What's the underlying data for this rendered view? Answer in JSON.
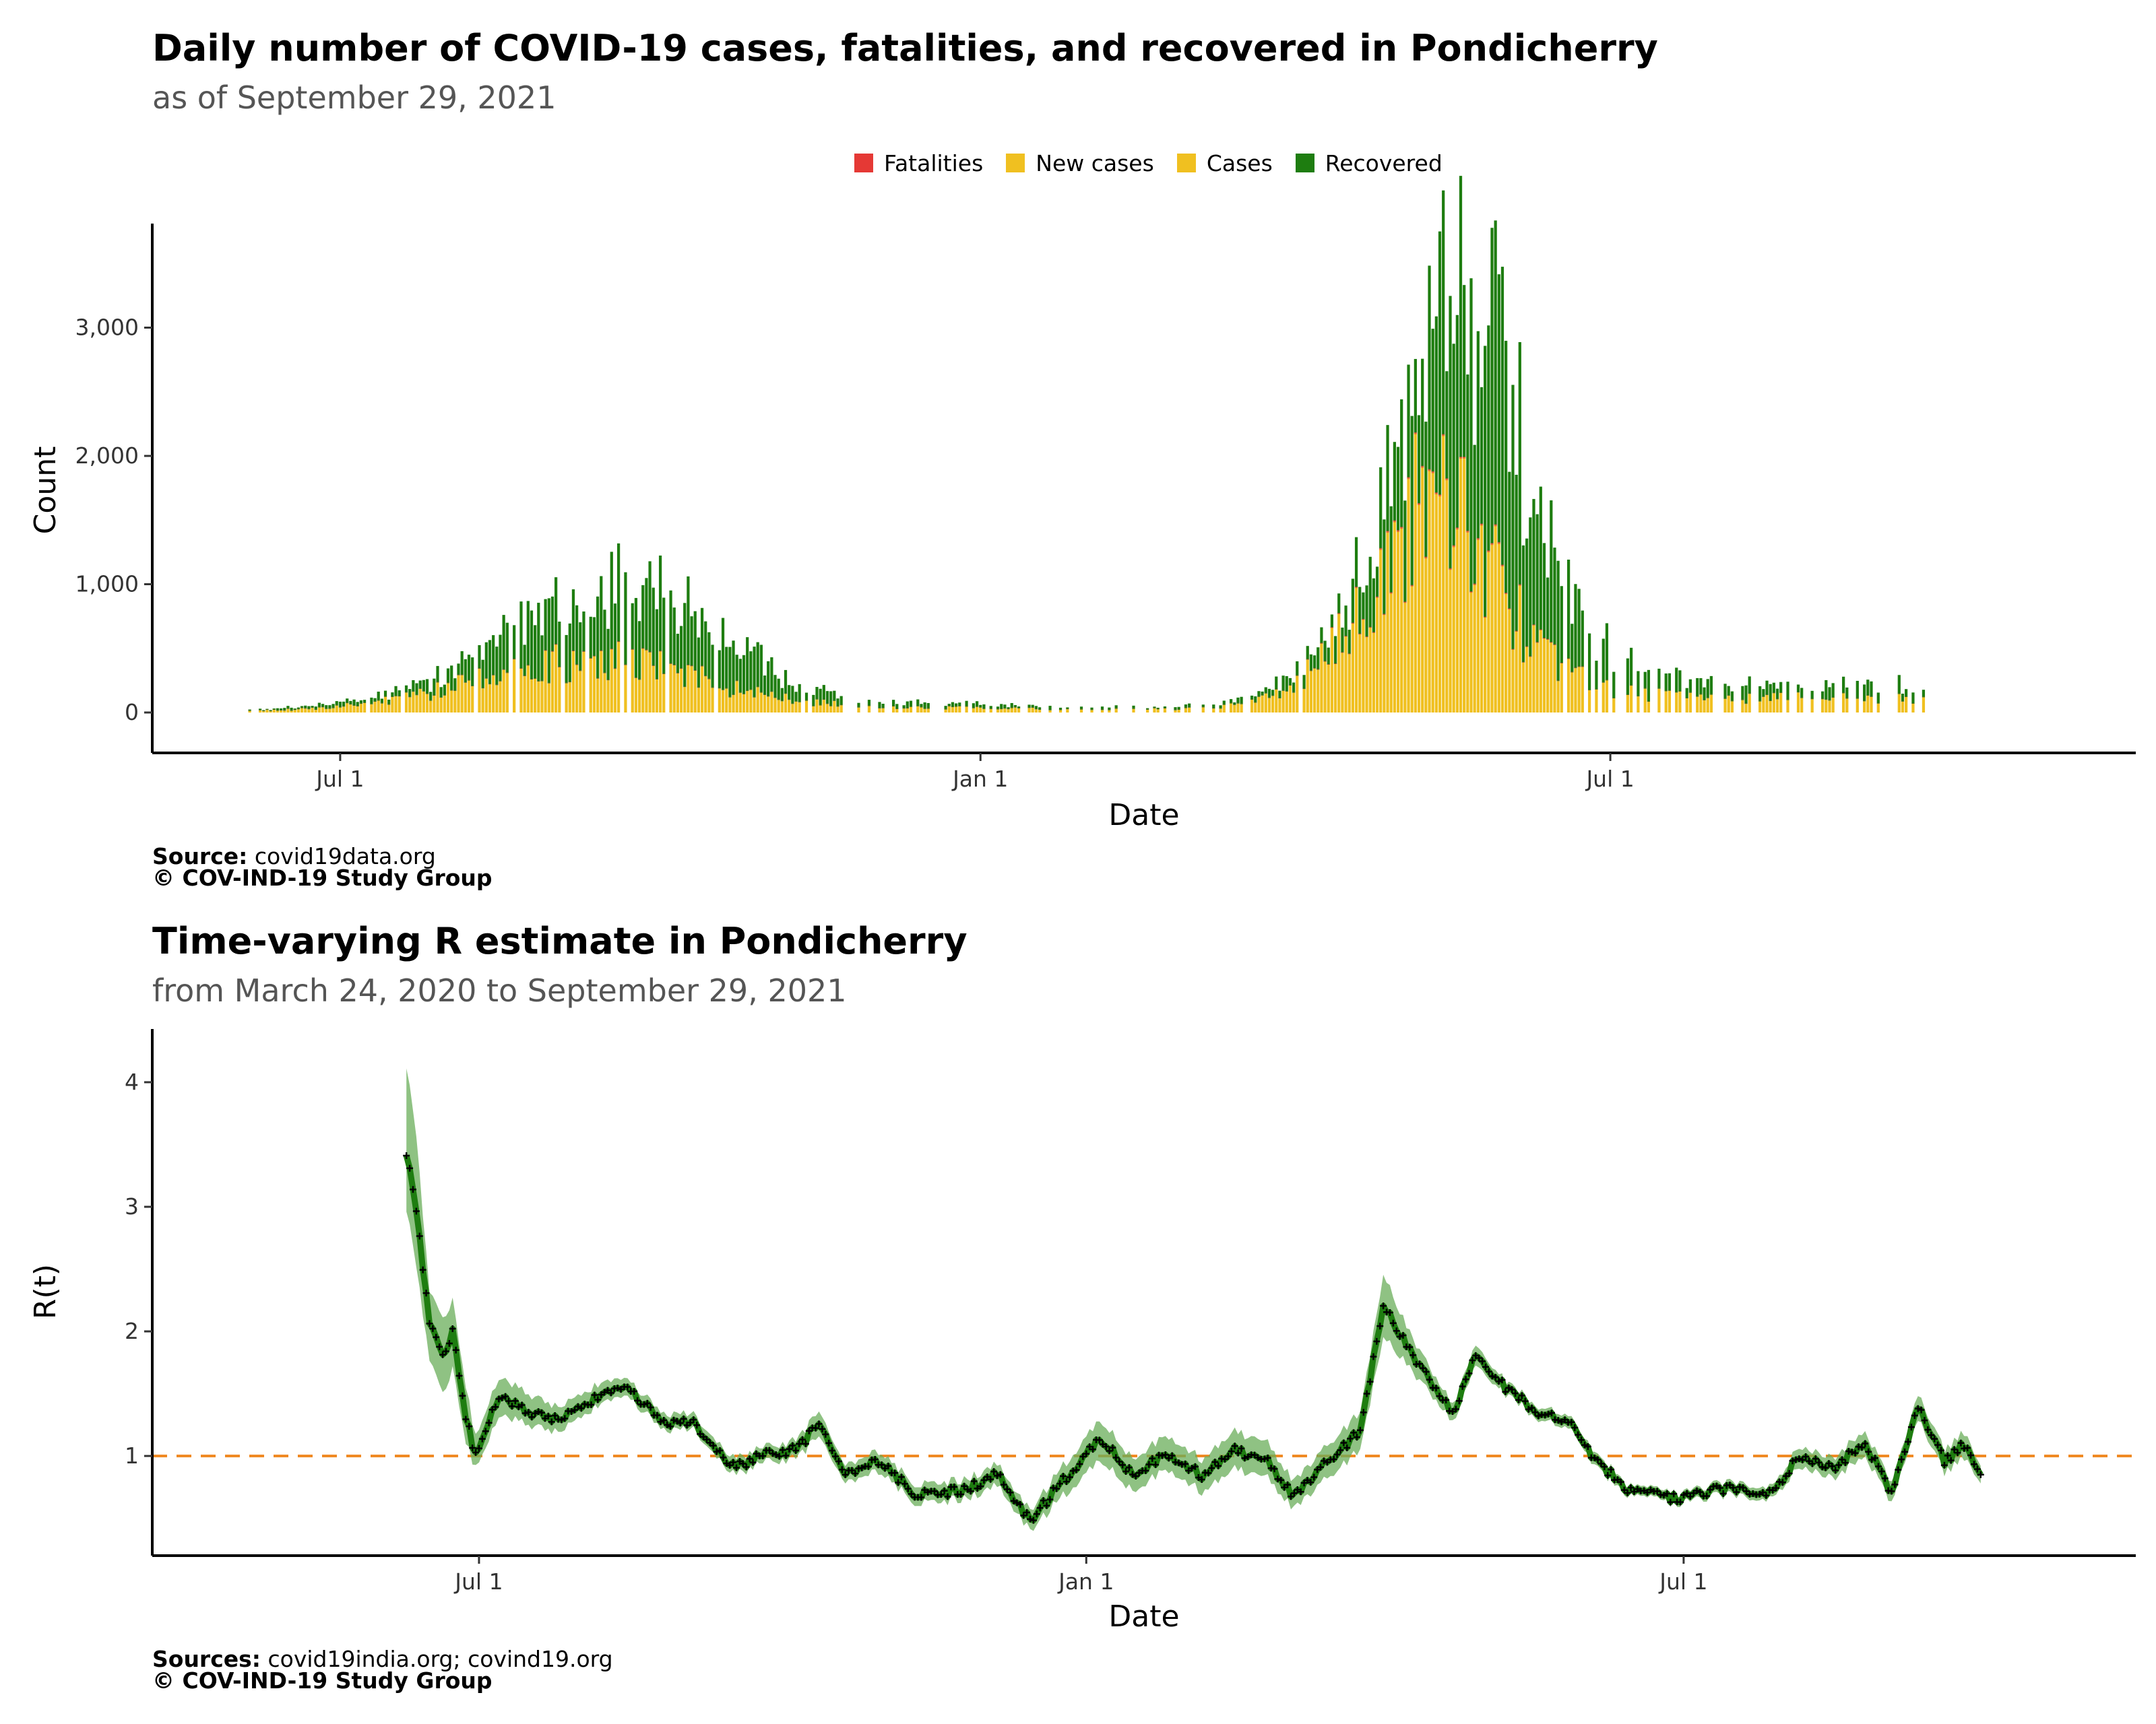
{
  "colors": {
    "fatalities": "#E53935",
    "new_cases": "#F0C020",
    "cases": "#F0C020",
    "recovered": "#1E7D10",
    "r_line": "#1E7D10",
    "r_band": "#6AAE5A",
    "ref_line": "#F08A24",
    "axis": "#000000"
  },
  "top_chart": {
    "title": "Daily number of COVID-19 cases, fatalities, and recovered in Pondicherry",
    "subtitle": "as of September 29, 2021",
    "legend": [
      "Fatalities",
      "New cases",
      "Cases",
      "Recovered"
    ],
    "caption_source_label": "Source:",
    "caption_source": "covid19data.org",
    "caption_copyright": "© COV-IND-19 Study Group"
  },
  "bottom_chart": {
    "title": "Time-varying R estimate in Pondicherry",
    "subtitle": "from March 24, 2020 to September 29, 2021",
    "caption_source_label": "Sources:",
    "caption_source": "covid19india.org; covind19.org",
    "caption_copyright": "© COV-IND-19 Study Group"
  },
  "chart_data": [
    {
      "type": "bar",
      "stacked": true,
      "xlabel": "Date",
      "ylabel": "Count",
      "x_ticks": [
        {
          "date": "2020-07-01",
          "label": "Jul  1"
        },
        {
          "date": "2021-01-01",
          "label": "Jan  1"
        },
        {
          "date": "2021-07-01",
          "label": "Jul  1"
        }
      ],
      "y_ticks": [
        {
          "value": 0,
          "label": "0"
        },
        {
          "value": 1000,
          "label": "1,000"
        },
        {
          "value": 2000,
          "label": "2,000"
        },
        {
          "value": 3000,
          "label": "3,000"
        }
      ],
      "xlim": [
        "2020-05-08",
        "2021-11-29"
      ],
      "ylim": [
        -170,
        3900
      ],
      "legend_position": "top",
      "grid": false,
      "keyframes": [
        {
          "date": "2020-06-05",
          "cases": 10,
          "recovered": 8
        },
        {
          "date": "2020-06-20",
          "cases": 25,
          "recovered": 20
        },
        {
          "date": "2020-07-10",
          "cases": 70,
          "recovered": 45
        },
        {
          "date": "2020-07-25",
          "cases": 150,
          "recovered": 90
        },
        {
          "date": "2020-08-10",
          "cases": 270,
          "recovered": 200
        },
        {
          "date": "2020-08-25",
          "cases": 380,
          "recovered": 450
        },
        {
          "date": "2020-09-10",
          "cases": 430,
          "recovered": 520
        },
        {
          "date": "2020-09-25",
          "cases": 420,
          "recovered": 540
        },
        {
          "date": "2020-10-10",
          "cases": 320,
          "recovered": 500
        },
        {
          "date": "2020-10-25",
          "cases": 170,
          "recovered": 330
        },
        {
          "date": "2020-11-10",
          "cases": 90,
          "recovered": 110
        },
        {
          "date": "2020-12-01",
          "cases": 45,
          "recovered": 45
        },
        {
          "date": "2021-01-10",
          "cases": 30,
          "recovered": 28
        },
        {
          "date": "2021-02-15",
          "cases": 25,
          "recovered": 20
        },
        {
          "date": "2021-03-10",
          "cases": 35,
          "recovered": 25
        },
        {
          "date": "2021-03-25",
          "cases": 130,
          "recovered": 60
        },
        {
          "date": "2021-04-10",
          "cases": 420,
          "recovered": 150
        },
        {
          "date": "2021-04-25",
          "cases": 1050,
          "recovered": 420
        },
        {
          "date": "2021-05-08",
          "cases": 1750,
          "recovered": 1100
        },
        {
          "date": "2021-05-15",
          "cases": 1950,
          "recovered": 1450
        },
        {
          "date": "2021-05-22",
          "cases": 1600,
          "recovered": 1800
        },
        {
          "date": "2021-05-30",
          "cases": 1100,
          "recovered": 1750
        },
        {
          "date": "2021-06-08",
          "cases": 560,
          "recovered": 1100
        },
        {
          "date": "2021-06-20",
          "cases": 300,
          "recovered": 500
        },
        {
          "date": "2021-07-05",
          "cases": 160,
          "recovered": 220
        },
        {
          "date": "2021-08-01",
          "cases": 110,
          "recovered": 100
        },
        {
          "date": "2021-09-01",
          "cases": 120,
          "recovered": 110
        },
        {
          "date": "2021-09-29",
          "cases": 110,
          "recovered": 100
        }
      ],
      "peak_total": 3750
    },
    {
      "type": "line",
      "xlabel": "Date",
      "ylabel": "R(t)",
      "x_ticks": [
        {
          "date": "2020-07-01",
          "label": "Jul  1"
        },
        {
          "date": "2021-01-01",
          "label": "Jan  1"
        },
        {
          "date": "2021-07-01",
          "label": "Jul  1"
        }
      ],
      "y_ticks": [
        {
          "value": 1,
          "label": "1"
        },
        {
          "value": 2,
          "label": "2"
        },
        {
          "value": 3,
          "label": "3"
        },
        {
          "value": 4,
          "label": "4"
        }
      ],
      "xlim": [
        "2020-03-24",
        "2021-11-15"
      ],
      "ylim": [
        0.22,
        4.55
      ],
      "reference_line": 1,
      "grid": false,
      "series": [
        {
          "values": [
            {
              "date": "2020-06-09",
              "r": 3.45,
              "lo": 3.0,
              "hi": 4.15
            },
            {
              "date": "2020-06-12",
              "r": 2.95,
              "lo": 2.5,
              "hi": 3.55
            },
            {
              "date": "2020-06-16",
              "r": 2.1,
              "lo": 1.8,
              "hi": 2.35
            },
            {
              "date": "2020-06-20",
              "r": 1.8,
              "lo": 1.5,
              "hi": 2.1
            },
            {
              "date": "2020-06-23",
              "r": 2.0,
              "lo": 1.7,
              "hi": 2.25
            },
            {
              "date": "2020-06-27",
              "r": 1.3,
              "lo": 1.1,
              "hi": 1.55
            },
            {
              "date": "2020-06-30",
              "r": 1.0,
              "lo": 0.9,
              "hi": 1.15
            },
            {
              "date": "2020-07-04",
              "r": 1.3,
              "lo": 1.15,
              "hi": 1.45
            },
            {
              "date": "2020-07-08",
              "r": 1.5,
              "lo": 1.35,
              "hi": 1.65
            },
            {
              "date": "2020-07-15",
              "r": 1.35,
              "lo": 1.25,
              "hi": 1.5
            },
            {
              "date": "2020-07-25",
              "r": 1.3,
              "lo": 1.2,
              "hi": 1.4
            },
            {
              "date": "2020-08-05",
              "r": 1.45,
              "lo": 1.38,
              "hi": 1.55
            },
            {
              "date": "2020-08-15",
              "r": 1.55,
              "lo": 1.48,
              "hi": 1.62
            },
            {
              "date": "2020-08-25",
              "r": 1.28,
              "lo": 1.22,
              "hi": 1.35
            },
            {
              "date": "2020-09-05",
              "r": 1.25,
              "lo": 1.2,
              "hi": 1.32
            },
            {
              "date": "2020-09-15",
              "r": 0.9,
              "lo": 0.84,
              "hi": 0.97
            },
            {
              "date": "2020-09-25",
              "r": 1.0,
              "lo": 0.94,
              "hi": 1.06
            },
            {
              "date": "2020-10-05",
              "r": 1.05,
              "lo": 0.98,
              "hi": 1.12
            },
            {
              "date": "2020-10-12",
              "r": 1.25,
              "lo": 1.15,
              "hi": 1.35
            },
            {
              "date": "2020-10-20",
              "r": 0.85,
              "lo": 0.78,
              "hi": 0.92
            },
            {
              "date": "2020-10-30",
              "r": 0.95,
              "lo": 0.87,
              "hi": 1.03
            },
            {
              "date": "2020-11-10",
              "r": 0.7,
              "lo": 0.63,
              "hi": 0.78
            },
            {
              "date": "2020-11-25",
              "r": 0.72,
              "lo": 0.65,
              "hi": 0.8
            },
            {
              "date": "2020-12-05",
              "r": 0.85,
              "lo": 0.76,
              "hi": 0.93
            },
            {
              "date": "2020-12-15",
              "r": 0.48,
              "lo": 0.4,
              "hi": 0.56
            },
            {
              "date": "2020-12-25",
              "r": 0.8,
              "lo": 0.68,
              "hi": 0.92
            },
            {
              "date": "2021-01-05",
              "r": 1.15,
              "lo": 0.98,
              "hi": 1.3
            },
            {
              "date": "2021-01-15",
              "r": 0.85,
              "lo": 0.72,
              "hi": 0.98
            },
            {
              "date": "2021-01-25",
              "r": 1.0,
              "lo": 0.88,
              "hi": 1.15
            },
            {
              "date": "2021-02-05",
              "r": 0.85,
              "lo": 0.72,
              "hi": 0.98
            },
            {
              "date": "2021-02-15",
              "r": 1.05,
              "lo": 0.9,
              "hi": 1.2
            },
            {
              "date": "2021-02-25",
              "r": 0.95,
              "lo": 0.82,
              "hi": 1.1
            },
            {
              "date": "2021-03-05",
              "r": 0.68,
              "lo": 0.58,
              "hi": 0.8
            },
            {
              "date": "2021-03-15",
              "r": 0.95,
              "lo": 0.82,
              "hi": 1.08
            },
            {
              "date": "2021-03-25",
              "r": 1.2,
              "lo": 1.05,
              "hi": 1.35
            },
            {
              "date": "2021-04-01",
              "r": 2.2,
              "lo": 1.95,
              "hi": 2.45
            },
            {
              "date": "2021-04-08",
              "r": 1.9,
              "lo": 1.75,
              "hi": 2.05
            },
            {
              "date": "2021-04-15",
              "r": 1.6,
              "lo": 1.5,
              "hi": 1.7
            },
            {
              "date": "2021-04-22",
              "r": 1.35,
              "lo": 1.28,
              "hi": 1.42
            },
            {
              "date": "2021-04-29",
              "r": 1.8,
              "lo": 1.72,
              "hi": 1.88
            },
            {
              "date": "2021-05-08",
              "r": 1.55,
              "lo": 1.5,
              "hi": 1.6
            },
            {
              "date": "2021-05-18",
              "r": 1.35,
              "lo": 1.3,
              "hi": 1.4
            },
            {
              "date": "2021-05-28",
              "r": 1.25,
              "lo": 1.2,
              "hi": 1.3
            },
            {
              "date": "2021-06-05",
              "r": 0.95,
              "lo": 0.9,
              "hi": 1.0
            },
            {
              "date": "2021-06-15",
              "r": 0.72,
              "lo": 0.68,
              "hi": 0.76
            },
            {
              "date": "2021-06-30",
              "r": 0.65,
              "lo": 0.61,
              "hi": 0.69
            },
            {
              "date": "2021-07-15",
              "r": 0.75,
              "lo": 0.7,
              "hi": 0.8
            },
            {
              "date": "2021-07-28",
              "r": 0.7,
              "lo": 0.65,
              "hi": 0.75
            },
            {
              "date": "2021-08-05",
              "r": 1.0,
              "lo": 0.92,
              "hi": 1.08
            },
            {
              "date": "2021-08-15",
              "r": 0.9,
              "lo": 0.82,
              "hi": 0.98
            },
            {
              "date": "2021-08-25",
              "r": 1.1,
              "lo": 1.0,
              "hi": 1.2
            },
            {
              "date": "2021-09-02",
              "r": 0.7,
              "lo": 0.62,
              "hi": 0.78
            },
            {
              "date": "2021-09-10",
              "r": 1.4,
              "lo": 1.3,
              "hi": 1.5
            },
            {
              "date": "2021-09-18",
              "r": 0.95,
              "lo": 0.86,
              "hi": 1.04
            },
            {
              "date": "2021-09-24",
              "r": 1.1,
              "lo": 1.0,
              "hi": 1.2
            },
            {
              "date": "2021-09-29",
              "r": 0.85,
              "lo": 0.78,
              "hi": 0.92
            }
          ]
        }
      ]
    }
  ]
}
